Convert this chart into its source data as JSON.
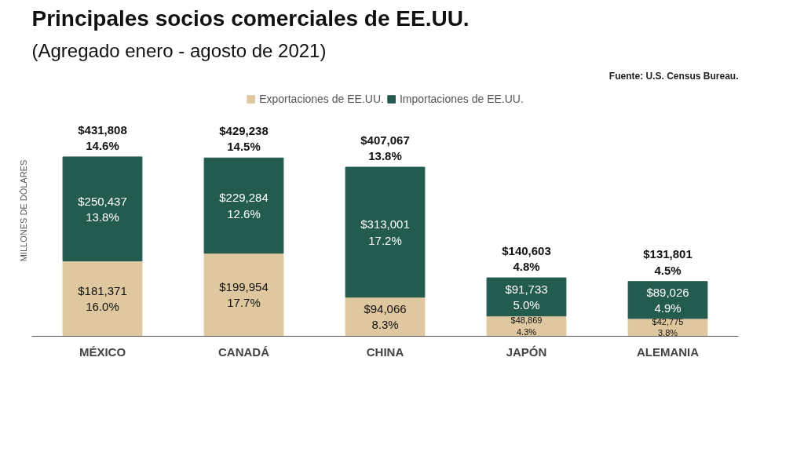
{
  "chart_data": {
    "type": "bar",
    "title": "Principales socios comerciales de EE.UU.",
    "subtitle": "(Agregado enero - agosto de 2021)",
    "ylabel": "MILLONES DE DÓLARES",
    "categories": [
      "MÉXICO",
      "CANADÁ",
      "CHINA",
      "JAPÓN",
      "ALEMANIA"
    ],
    "stacked": true,
    "legend": "top",
    "tick_labels": "x",
    "grid": false,
    "series": [
      {
        "name": "Exportaciones de EE.UU.",
        "color": "#dfc8a0",
        "values": [
          181371,
          199954,
          94066,
          48869,
          42775
        ],
        "value_labels": [
          "$181,371\n16.0%",
          "$199,954\n17.7%",
          "$94,066\n8.3%",
          "$48,869\n4.3%",
          "$42,775\n3.8%"
        ]
      },
      {
        "name": "Importaciones de EE.UU.",
        "color": "#235b4e",
        "values": [
          250437,
          229284,
          313001,
          91733,
          89026
        ],
        "value_labels": [
          "$250,437\n13.8%",
          "$229,284\n12.6%",
          "$313,001\n17.2%",
          "$91,733\n5.0%",
          "$89,026\n4.9%"
        ]
      }
    ],
    "totals": [
      "$431,808\n14.6%",
      "$429,238\n14.5%",
      "$407,067\n13.8%",
      "$140,603\n4.8%",
      "$131,801\n4.5%"
    ],
    "annotations": [
      "Fuente: U.S. Census Bureau."
    ]
  }
}
